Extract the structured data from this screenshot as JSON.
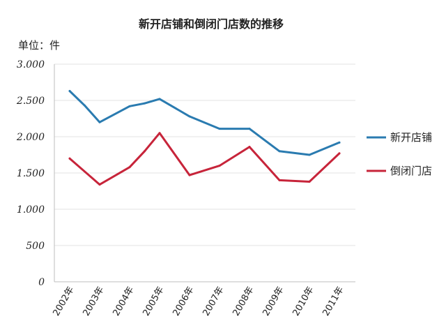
{
  "chart_data": {
    "type": "line",
    "title": "新开店铺和倒闭门店数的推移",
    "unit_label": "单位：件",
    "xlabel": "",
    "ylabel": "",
    "categories": [
      "2002年",
      "2003年",
      "2004年",
      "2005年",
      "2006年",
      "2007年",
      "2008年",
      "2009年",
      "2010年",
      "2011年"
    ],
    "ylim": [
      0,
      3000
    ],
    "yticks": [
      0,
      500,
      1000,
      1500,
      2000,
      2500,
      3000
    ],
    "ytick_labels": [
      "0",
      "500",
      "1.000",
      "1.500",
      "2.000",
      "2.500",
      "3.000"
    ],
    "grid": true,
    "legend_position": "right",
    "series": [
      {
        "name": "新开店铺",
        "color": "#2a7bb0",
        "x": [
          "2002年",
          "2002.5",
          "2003年",
          "2004年",
          "2004.5",
          "2005年",
          "2006年",
          "2007年",
          "2008年",
          "2009年",
          "2010年",
          "2011年"
        ],
        "values": [
          2630,
          2430,
          2200,
          2420,
          2460,
          2520,
          2280,
          2110,
          2110,
          1800,
          1750,
          1920
        ]
      },
      {
        "name": "倒闭门店",
        "color": "#c7243a",
        "x": [
          "2002年",
          "2003年",
          "2004年",
          "2004.5",
          "2005年",
          "2006年",
          "2007年",
          "2008年",
          "2009年",
          "2010年",
          "2011年"
        ],
        "values": [
          1700,
          1340,
          1580,
          1800,
          2050,
          1470,
          1600,
          1860,
          1400,
          1380,
          1770
        ]
      }
    ]
  }
}
